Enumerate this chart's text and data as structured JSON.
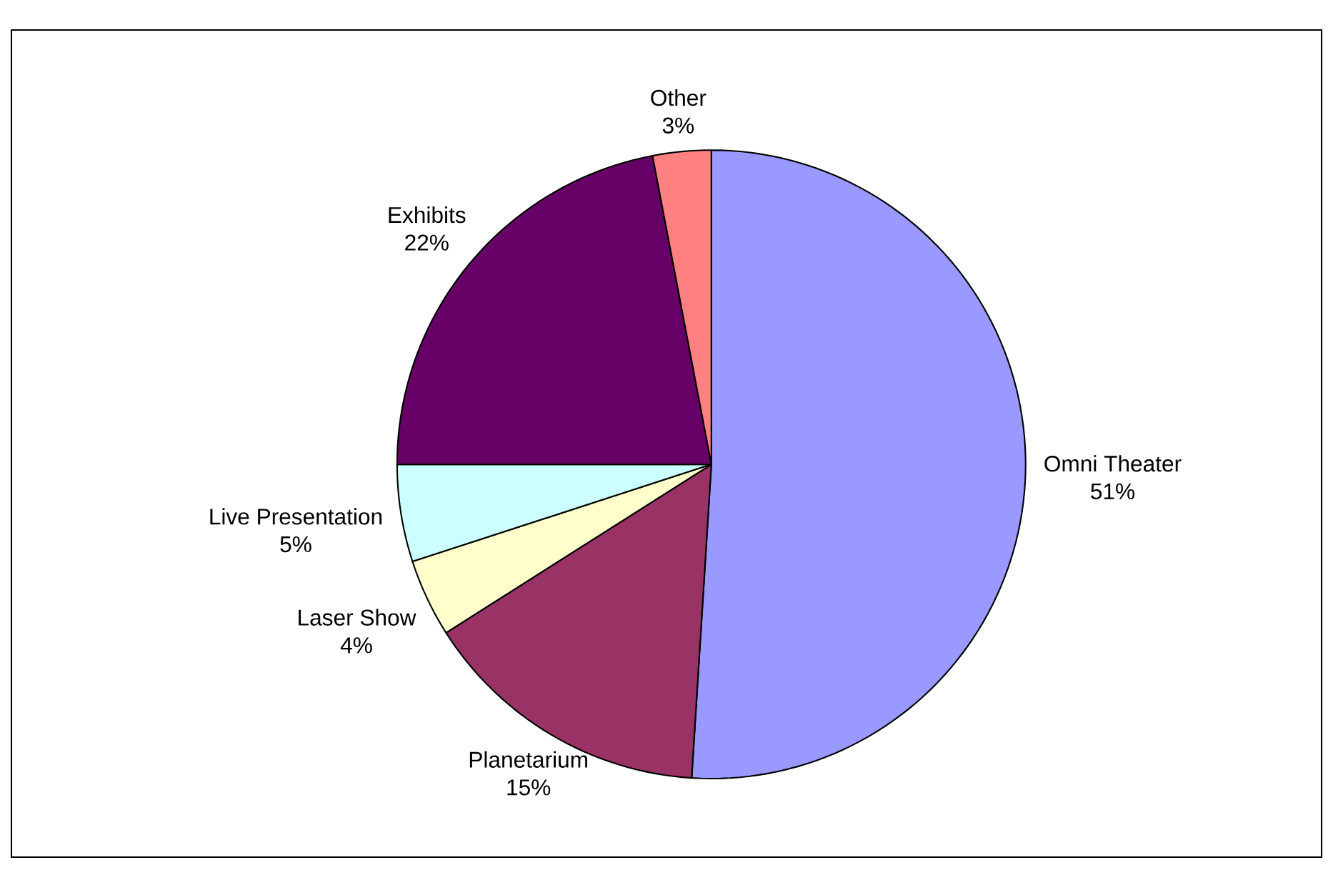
{
  "chart_data": {
    "type": "pie",
    "categories": [
      "Omni Theater",
      "Planetarium",
      "Laser Show",
      "Live Presentation",
      "Exhibits",
      "Other"
    ],
    "values": [
      51,
      15,
      4,
      5,
      22,
      3
    ],
    "value_labels": [
      "51%",
      "15%",
      "4%",
      "5%",
      "22%",
      "3%"
    ],
    "colors": [
      "#9999ff",
      "#993366",
      "#ffffcc",
      "#ccffff",
      "#660066",
      "#ff8080"
    ]
  }
}
